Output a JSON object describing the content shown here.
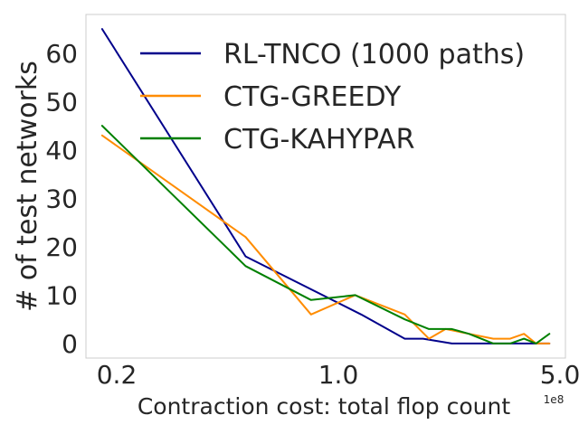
{
  "chart_data": {
    "type": "line",
    "title": "",
    "xlabel": "Contraction cost: total flop count",
    "ylabel": "# of test networks",
    "x_scale": "log",
    "x_offset_label": "1e8",
    "xlim": [
      0.16,
      5.2
    ],
    "ylim": [
      -3,
      68
    ],
    "grid": false,
    "legend_position": "top-right",
    "x_ticks": [
      0.2,
      1.0,
      5.0
    ],
    "x_tick_labels": [
      "0.2",
      "1.0",
      "5.0"
    ],
    "y_ticks": [
      0,
      10,
      20,
      30,
      40,
      50,
      60
    ],
    "y_tick_labels": [
      "0",
      "10",
      "20",
      "30",
      "40",
      "50",
      "60"
    ],
    "series": [
      {
        "name": "RL-TNCO (1000 paths)",
        "color": "#00008b",
        "x": [
          0.18,
          0.51,
          1.18,
          1.62,
          1.85,
          2.28,
          2.65,
          3.08,
          4.63
        ],
        "y": [
          65,
          18,
          6,
          1,
          1,
          0,
          0,
          0,
          0
        ]
      },
      {
        "name": "CTG-GREEDY",
        "color": "#ff8c00",
        "x": [
          0.18,
          0.51,
          0.82,
          1.13,
          1.62,
          1.93,
          2.18,
          2.58,
          3.08,
          3.48,
          3.85,
          4.2,
          4.63
        ],
        "y": [
          43,
          22,
          6,
          10,
          6,
          1,
          3,
          2,
          1,
          1,
          2,
          0,
          0
        ]
      },
      {
        "name": "CTG-KAHYPAR",
        "color": "#008000",
        "x": [
          0.18,
          0.51,
          0.82,
          1.13,
          1.62,
          1.93,
          2.28,
          2.58,
          3.08,
          3.48,
          3.85,
          4.2,
          4.63
        ],
        "y": [
          45,
          16,
          9,
          10,
          5,
          3,
          3,
          2,
          0,
          0,
          1,
          0,
          2
        ]
      }
    ]
  }
}
